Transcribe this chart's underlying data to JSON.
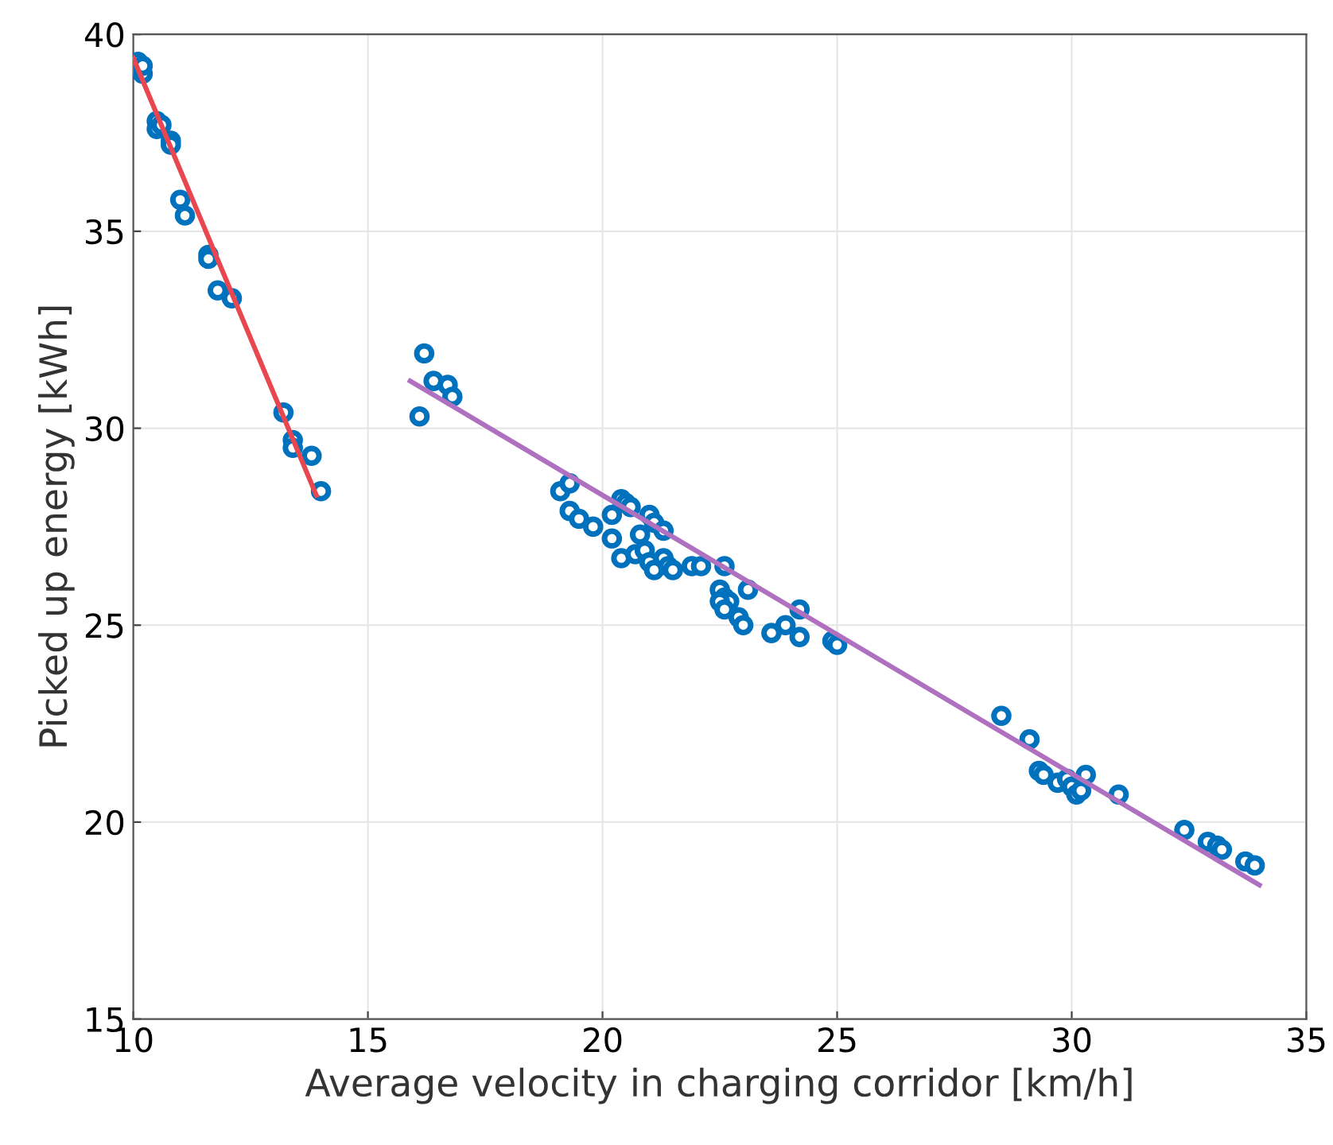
{
  "chart_data": {
    "type": "scatter",
    "xlabel": "Average velocity in charging corridor [km/h]",
    "ylabel": "Picked up energy [kWh]",
    "xlim": [
      10,
      35
    ],
    "xticks": [
      10,
      15,
      20,
      25,
      30,
      35
    ],
    "ylim": [
      15,
      40
    ],
    "yticks": [
      15,
      20,
      25,
      30,
      35,
      40
    ],
    "grid": true,
    "series": [
      {
        "marker": "circle",
        "color": "#0072bd",
        "x": [
          10.1,
          10.1,
          10.2,
          10.2,
          10.5,
          10.5,
          10.6,
          10.8,
          10.8,
          11.0,
          11.1,
          11.6,
          11.6,
          11.8,
          12.1,
          13.2,
          13.4,
          13.4,
          13.8,
          14.0,
          16.1,
          16.2,
          16.4,
          16.7,
          16.8,
          19.1,
          19.3,
          19.3,
          19.5,
          19.8,
          20.2,
          20.2,
          20.4,
          20.5,
          20.6,
          20.4,
          20.7,
          20.9,
          21.0,
          21.1,
          21.3,
          20.8,
          21.0,
          21.1,
          21.3,
          21.4,
          21.5,
          21.9,
          22.1,
          22.6,
          22.5,
          22.6,
          22.7,
          22.5,
          22.6,
          22.9,
          23.1,
          23.0,
          23.6,
          23.9,
          24.2,
          24.2,
          24.9,
          25.0,
          28.5,
          29.1,
          29.3,
          29.4,
          29.7,
          29.9,
          30.0,
          30.1,
          30.2,
          30.3,
          31.0,
          32.4,
          32.9,
          33.1,
          33.2,
          33.7,
          33.9
        ],
        "values": [
          39.3,
          39.1,
          39.0,
          39.2,
          37.8,
          37.6,
          37.7,
          37.3,
          37.2,
          35.8,
          35.4,
          34.4,
          34.3,
          33.5,
          33.3,
          30.4,
          29.7,
          29.5,
          29.3,
          28.4,
          30.3,
          31.9,
          31.2,
          31.1,
          30.8,
          28.4,
          28.6,
          27.9,
          27.7,
          27.5,
          27.2,
          27.8,
          28.2,
          28.1,
          28.0,
          26.7,
          26.8,
          26.9,
          27.8,
          27.6,
          27.4,
          27.3,
          26.6,
          26.4,
          26.7,
          26.5,
          26.4,
          26.5,
          26.5,
          26.5,
          25.9,
          25.7,
          25.6,
          25.6,
          25.4,
          25.2,
          25.9,
          25.0,
          24.8,
          25.0,
          25.4,
          24.7,
          24.6,
          24.5,
          22.7,
          22.1,
          21.3,
          21.2,
          21.0,
          21.1,
          20.9,
          20.7,
          20.8,
          21.2,
          20.7,
          19.8,
          19.5,
          19.4,
          19.3,
          19.0,
          18.9
        ]
      },
      {
        "type": "line",
        "color": "#e8474f",
        "x": [
          10.0,
          13.9
        ],
        "values": [
          39.4,
          28.3
        ]
      },
      {
        "type": "line",
        "color": "#b070c0",
        "x": [
          15.9,
          34.0
        ],
        "values": [
          31.2,
          18.4
        ]
      }
    ]
  }
}
